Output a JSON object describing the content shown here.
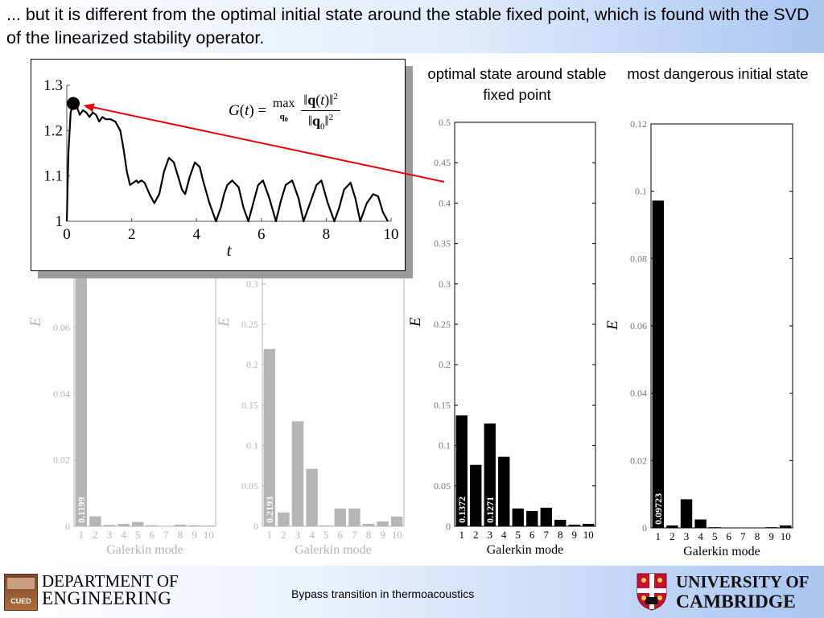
{
  "header": {
    "text": "... but it is different from the optimal initial state around the stable fixed point, which is found with the SVD of the linearized stability operator."
  },
  "column_titles": {
    "optimal": "optimal state around stable fixed point",
    "dangerous": "most dangerous initial state"
  },
  "inset": {
    "formula": "G(t) = max_{q0} ||q(t)||^2 / ||q0||^2",
    "arrow_color": "#e8000b"
  },
  "footer": {
    "dept_line1": "DEPARTMENT OF",
    "dept_line2": "ENGINEERING",
    "dept_logo_text": "CUED",
    "center_text": "Bypass transition in thermoacoustics",
    "univ_line1": "UNIVERSITY OF",
    "univ_line2": "CAMBRIDGE"
  },
  "colors": {
    "bars_black": "#000000",
    "bars_faded": "#b5b5b5",
    "header_gradient_end": "#a9c6f2",
    "arrow": "#e8000b"
  },
  "chart_data": [
    {
      "type": "line",
      "id": "gain",
      "xlabel": "t",
      "ylabel": "",
      "xlim": [
        0,
        10
      ],
      "ylim": [
        1,
        1.3
      ],
      "xticks": [
        "0",
        "2",
        "4",
        "6",
        "8",
        "10"
      ],
      "yticks": [
        "1",
        "1.1",
        "1.2",
        "1.3"
      ],
      "marker": {
        "x": 0.2,
        "y": 1.26
      },
      "series": [
        {
          "x": [
            0,
            0.05,
            0.12,
            0.2,
            0.3,
            0.4,
            0.5,
            0.6,
            0.7,
            0.8,
            0.9,
            1.0,
            1.1,
            1.2,
            1.35,
            1.5,
            1.65,
            1.75,
            1.85,
            1.95,
            2.05,
            2.15,
            2.2,
            2.3,
            2.4,
            2.55,
            2.7,
            2.85,
            3.0,
            3.15,
            3.3,
            3.45,
            3.55,
            3.65,
            3.8,
            3.95,
            4.1,
            4.2,
            4.4,
            4.6,
            4.75,
            4.85,
            4.95,
            5.1,
            5.3,
            5.45,
            5.6,
            5.75,
            5.9,
            6.05,
            6.25,
            6.45,
            6.6,
            6.75,
            6.95,
            7.15,
            7.3,
            7.5,
            7.7,
            7.85,
            8.05,
            8.25,
            8.4,
            8.55,
            8.75,
            8.9,
            9.05,
            9.25,
            9.45,
            9.6,
            9.75,
            9.9
          ],
          "y": [
            1.0,
            1.15,
            1.24,
            1.26,
            1.255,
            1.235,
            1.245,
            1.24,
            1.23,
            1.24,
            1.235,
            1.22,
            1.23,
            1.225,
            1.225,
            1.22,
            1.2,
            1.16,
            1.11,
            1.08,
            1.085,
            1.09,
            1.085,
            1.09,
            1.085,
            1.06,
            1.04,
            1.06,
            1.11,
            1.14,
            1.13,
            1.095,
            1.07,
            1.06,
            1.1,
            1.13,
            1.12,
            1.09,
            1.04,
            1.0,
            1.03,
            1.06,
            1.08,
            1.09,
            1.075,
            1.03,
            1.0,
            1.04,
            1.08,
            1.09,
            1.05,
            1.0,
            1.045,
            1.08,
            1.09,
            1.05,
            1.0,
            1.04,
            1.08,
            1.09,
            1.04,
            1.0,
            1.03,
            1.07,
            1.085,
            1.05,
            1.0,
            1.04,
            1.06,
            1.055,
            1.02,
            1.0
          ]
        }
      ]
    },
    {
      "type": "bar",
      "id": "faded1",
      "xlabel": "Galerkin mode",
      "ylabel": "E",
      "categories": [
        "1",
        "2",
        "3",
        "4",
        "5",
        "6",
        "7",
        "8",
        "9",
        "10"
      ],
      "values": [
        0.1199,
        0.003,
        0.0004,
        0.0007,
        0.0013,
        0.0003,
        0.0001,
        0.0005,
        0.0003,
        0.0002
      ],
      "yticks": [
        "0",
        "0.02",
        "0.04",
        "0.06"
      ],
      "ylim": [
        0,
        0.12
      ],
      "data_label": "0.1199"
    },
    {
      "type": "bar",
      "id": "faded2",
      "xlabel": "Galerkin mode",
      "ylabel": "E",
      "categories": [
        "1",
        "2",
        "3",
        "4",
        "5",
        "6",
        "7",
        "8",
        "9",
        "10"
      ],
      "values": [
        0.2193,
        0.017,
        0.13,
        0.071,
        0.001,
        0.022,
        0.022,
        0.003,
        0.006,
        0.012
      ],
      "yticks": [
        "0",
        "0.05",
        "0.1",
        "0.15",
        "0.2",
        "0.25",
        "0.3"
      ],
      "ylim": [
        0,
        0.5
      ],
      "data_label": "0.2193"
    },
    {
      "type": "bar",
      "id": "optimal",
      "xlabel": "Galerkin mode",
      "ylabel": "E",
      "categories": [
        "1",
        "2",
        "3",
        "4",
        "5",
        "6",
        "7",
        "8",
        "9",
        "10"
      ],
      "values": [
        0.1372,
        0.076,
        0.1271,
        0.086,
        0.022,
        0.019,
        0.023,
        0.008,
        0.002,
        0.003
      ],
      "yticks": [
        "0",
        "0.05",
        "0.1",
        "0.15",
        "0.2",
        "0.25",
        "0.3",
        "0.35",
        "0.4",
        "0.45",
        "0.5"
      ],
      "ylim": [
        0,
        0.5
      ],
      "data_labels": [
        "0.1372",
        "",
        "0.1271",
        "",
        "",
        "",
        "",
        "",
        "",
        ""
      ]
    },
    {
      "type": "bar",
      "id": "dangerous",
      "xlabel": "Galerkin mode",
      "ylabel": "E",
      "categories": [
        "1",
        "2",
        "3",
        "4",
        "5",
        "6",
        "7",
        "8",
        "9",
        "10"
      ],
      "values": [
        0.09723,
        0.0007,
        0.0085,
        0.0025,
        0.0002,
        0.0001,
        0.0001,
        0.0001,
        0.0002,
        0.0007
      ],
      "yticks": [
        "0",
        "0.02",
        "0.04",
        "0.06",
        "0.08",
        "0.1",
        "0.12"
      ],
      "ylim": [
        0,
        0.12
      ],
      "data_label": "0.09723"
    }
  ]
}
